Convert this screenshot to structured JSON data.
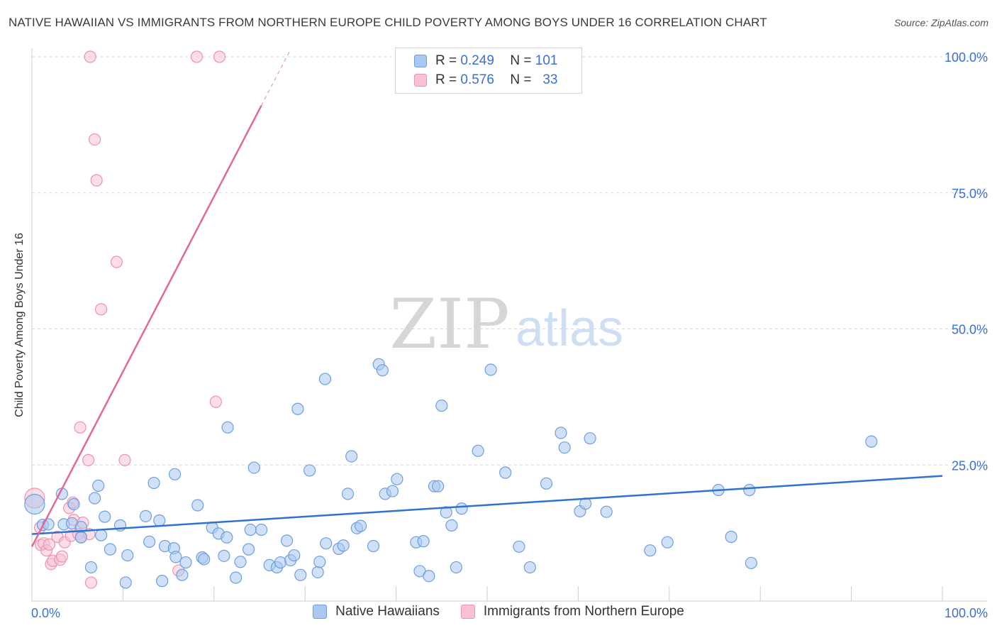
{
  "header": {
    "title": "NATIVE HAWAIIAN VS IMMIGRANTS FROM NORTHERN EUROPE CHILD POVERTY AMONG BOYS UNDER 16 CORRELATION CHART",
    "source": "Source: ZipAtlas.com"
  },
  "watermark": {
    "zip": "ZIP",
    "atlas": "atlas"
  },
  "legend_top": {
    "rows": [
      {
        "r_label": "R =",
        "r_value": "0.249",
        "n_label": "N =",
        "n_value": "101"
      },
      {
        "r_label": "R =",
        "r_value": "0.576",
        "n_label": "N =",
        "n_value": "33"
      }
    ]
  },
  "colors": {
    "blue_fill": "#aac8f0",
    "blue_stroke": "#6d9fe0",
    "blue_line": "#2f73cf",
    "pink_fill": "#f8c2d2",
    "pink_stroke": "#ec93b0",
    "pink_line": "#e0699a",
    "axis_label": "#3a6fd8",
    "grid": "#d8d8d8"
  },
  "chart_data": {
    "type": "scatter",
    "title": "NATIVE HAWAIIAN VS IMMIGRANTS FROM NORTHERN EUROPE CHILD POVERTY AMONG BOYS UNDER 16 CORRELATION CHART",
    "xlabel": "",
    "ylabel": "Child Poverty Among Boys Under 16",
    "xlim": [
      0,
      100
    ],
    "ylim": [
      0,
      100
    ],
    "x_tick_labels": [
      "0.0%",
      "100.0%"
    ],
    "y_tick_labels": [
      "25.0%",
      "50.0%",
      "75.0%",
      "100.0%"
    ],
    "y_ticks": [
      25,
      50,
      75,
      100
    ],
    "series": [
      {
        "name": "Native Hawaiians",
        "color": "blue",
        "r": 0.249,
        "n": 101,
        "trend": {
          "x0": 0,
          "y0": 12.3,
          "x1": 100,
          "y1": 23.0
        },
        "points": [
          [
            0.3,
            17.8
          ],
          [
            1.2,
            14.0
          ],
          [
            1.8,
            14.1
          ],
          [
            3.3,
            19.7
          ],
          [
            3.5,
            14.1
          ],
          [
            4.4,
            14.3
          ],
          [
            4.6,
            17.8
          ],
          [
            5.4,
            13.6
          ],
          [
            5.4,
            11.7
          ],
          [
            6.5,
            6.2
          ],
          [
            6.9,
            18.9
          ],
          [
            7.3,
            21.2
          ],
          [
            7.6,
            12.1
          ],
          [
            8.0,
            15.5
          ],
          [
            8.6,
            9.5
          ],
          [
            9.7,
            13.9
          ],
          [
            10.3,
            3.4
          ],
          [
            10.5,
            8.4
          ],
          [
            12.5,
            15.6
          ],
          [
            12.9,
            10.9
          ],
          [
            13.4,
            21.7
          ],
          [
            14.0,
            14.8
          ],
          [
            14.3,
            3.7
          ],
          [
            14.6,
            10.1
          ],
          [
            15.6,
            9.7
          ],
          [
            15.8,
            8.1
          ],
          [
            15.7,
            23.3
          ],
          [
            16.5,
            4.8
          ],
          [
            16.9,
            7.1
          ],
          [
            18.2,
            17.6
          ],
          [
            18.7,
            8.0
          ],
          [
            18.9,
            7.7
          ],
          [
            19.8,
            13.5
          ],
          [
            20.5,
            12.4
          ],
          [
            21.1,
            8.3
          ],
          [
            21.4,
            11.7
          ],
          [
            21.5,
            31.9
          ],
          [
            22.4,
            4.3
          ],
          [
            22.9,
            7.2
          ],
          [
            23.8,
            9.5
          ],
          [
            24.0,
            13.1
          ],
          [
            24.4,
            24.5
          ],
          [
            25.2,
            13.1
          ],
          [
            26.1,
            6.6
          ],
          [
            26.9,
            6.2
          ],
          [
            27.3,
            7.1
          ],
          [
            28.0,
            11.1
          ],
          [
            28.4,
            7.5
          ],
          [
            28.8,
            8.4
          ],
          [
            29.2,
            35.3
          ],
          [
            29.5,
            4.8
          ],
          [
            30.5,
            24.0
          ],
          [
            31.4,
            5.3
          ],
          [
            31.6,
            7.2
          ],
          [
            32.2,
            40.8
          ],
          [
            32.3,
            10.6
          ],
          [
            33.7,
            9.6
          ],
          [
            34.2,
            10.2
          ],
          [
            34.7,
            19.7
          ],
          [
            35.1,
            26.6
          ],
          [
            35.7,
            13.4
          ],
          [
            36.1,
            13.8
          ],
          [
            37.5,
            10.1
          ],
          [
            38.1,
            43.5
          ],
          [
            38.5,
            42.4
          ],
          [
            38.8,
            19.7
          ],
          [
            39.6,
            20.2
          ],
          [
            40.1,
            22.4
          ],
          [
            42.2,
            10.8
          ],
          [
            42.6,
            5.5
          ],
          [
            43.0,
            11.0
          ],
          [
            43.6,
            4.6
          ],
          [
            44.2,
            21.1
          ],
          [
            44.6,
            21.1
          ],
          [
            45.0,
            35.9
          ],
          [
            45.5,
            16.3
          ],
          [
            46.1,
            13.9
          ],
          [
            46.6,
            6.2
          ],
          [
            47.2,
            17.0
          ],
          [
            49.0,
            27.6
          ],
          [
            50.4,
            42.5
          ],
          [
            52.0,
            23.6
          ],
          [
            53.5,
            10.0
          ],
          [
            54.7,
            6.2
          ],
          [
            56.5,
            21.6
          ],
          [
            58.1,
            30.9
          ],
          [
            58.5,
            28.2
          ],
          [
            60.2,
            16.5
          ],
          [
            60.8,
            17.9
          ],
          [
            61.3,
            29.9
          ],
          [
            63.1,
            16.4
          ],
          [
            67.9,
            9.3
          ],
          [
            69.8,
            10.8
          ],
          [
            75.4,
            20.4
          ],
          [
            76.8,
            11.8
          ],
          [
            78.8,
            20.4
          ],
          [
            79.0,
            7.0
          ],
          [
            92.2,
            29.3
          ]
        ]
      },
      {
        "name": "Immigrants from Northern Europe",
        "color": "pink",
        "r": 0.576,
        "n": 33,
        "trend": {
          "x0": 0,
          "y0": 10.0,
          "x1": 28.3,
          "y1": 101.0,
          "solid_until_x": 25.2
        },
        "points": [
          [
            0.3,
            18.9
          ],
          [
            0.9,
            13.5
          ],
          [
            1.0,
            10.3
          ],
          [
            1.3,
            10.6
          ],
          [
            1.6,
            9.3
          ],
          [
            1.9,
            10.4
          ],
          [
            2.1,
            6.8
          ],
          [
            2.3,
            7.4
          ],
          [
            2.8,
            11.8
          ],
          [
            3.1,
            7.6
          ],
          [
            3.3,
            8.2
          ],
          [
            3.6,
            10.8
          ],
          [
            4.1,
            17.1
          ],
          [
            4.3,
            12.0
          ],
          [
            4.5,
            18.1
          ],
          [
            4.6,
            14.9
          ],
          [
            5.1,
            12.3
          ],
          [
            5.4,
            11.8
          ],
          [
            5.6,
            14.4
          ],
          [
            5.3,
            31.9
          ],
          [
            6.2,
            25.9
          ],
          [
            6.3,
            12.3
          ],
          [
            6.4,
            100.0
          ],
          [
            6.5,
            3.4
          ],
          [
            6.9,
            84.8
          ],
          [
            7.1,
            77.3
          ],
          [
            7.6,
            53.6
          ],
          [
            9.3,
            62.3
          ],
          [
            10.2,
            25.9
          ],
          [
            16.1,
            5.6
          ],
          [
            18.1,
            100.0
          ],
          [
            20.2,
            36.6
          ],
          [
            20.6,
            100.0
          ]
        ]
      }
    ]
  }
}
